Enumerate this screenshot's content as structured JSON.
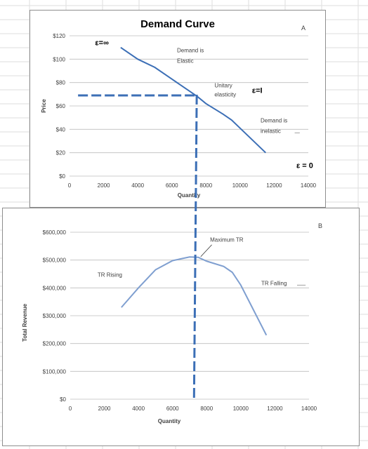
{
  "chart_data": [
    {
      "type": "line",
      "title": "Demand Curve",
      "panel_label": "A",
      "xlabel": "Quantity",
      "ylabel": "Price",
      "xlim": [
        0,
        14000
      ],
      "ylim": [
        0,
        120
      ],
      "x_ticks": [
        "0",
        "2000",
        "4000",
        "6000",
        "8000",
        "10000",
        "12000",
        "14000"
      ],
      "y_ticks": [
        "$0",
        "$20",
        "$40",
        "$60",
        "$80",
        "$100",
        "$120"
      ],
      "grid": true,
      "series": [
        {
          "x": [
            3000,
            4000,
            5000,
            6000,
            7000,
            7500,
            8000,
            9000,
            9500,
            10000,
            11500
          ],
          "y": [
            110,
            100,
            93,
            83,
            73,
            68,
            62,
            53,
            48,
            41,
            20
          ]
        }
      ],
      "reference_line": {
        "x": 7500,
        "y": 69
      },
      "annotations": [
        {
          "text": "ε=∞",
          "x": 1500,
          "y": 112
        },
        {
          "text": "Demand is",
          "x": 6300,
          "y": 106
        },
        {
          "text": "Elastic",
          "x": 6300,
          "y": 97
        },
        {
          "text": "Unitary",
          "x": 8500,
          "y": 76
        },
        {
          "text": "elasticity",
          "x": 8500,
          "y": 68
        },
        {
          "text": "ε=I",
          "x": 10700,
          "y": 71
        },
        {
          "text": "Demand is",
          "x": 11200,
          "y": 46
        },
        {
          "text": "inelastic",
          "x": 11200,
          "y": 37
        },
        {
          "text": "ε = 0",
          "x": 13300,
          "y": 7
        }
      ]
    },
    {
      "type": "line",
      "panel_label": "B",
      "xlabel": "Quantity",
      "ylabel": "Total Revenue",
      "xlim": [
        0,
        14000
      ],
      "ylim": [
        0,
        600000
      ],
      "x_ticks": [
        "0",
        "2000",
        "4000",
        "6000",
        "8000",
        "10000",
        "12000",
        "14000"
      ],
      "y_ticks": [
        "$0",
        "$100,000",
        "$200,000",
        "$300,000",
        "$400,000",
        "$500,000",
        "$600,000"
      ],
      "grid": true,
      "series": [
        {
          "x": [
            3000,
            4000,
            5000,
            6000,
            7000,
            7500,
            8000,
            9000,
            9500,
            10000,
            11500
          ],
          "y": [
            330000,
            400000,
            465000,
            498000,
            511000,
            510000,
            496000,
            477000,
            456000,
            410000,
            230000
          ]
        }
      ],
      "annotations": [
        {
          "text": "Maximum TR",
          "x": 8200,
          "y": 566000
        },
        {
          "text": "TR  Rising",
          "x": 1600,
          "y": 440000
        },
        {
          "text": "TR Falling",
          "x": 11200,
          "y": 410000
        }
      ]
    }
  ]
}
